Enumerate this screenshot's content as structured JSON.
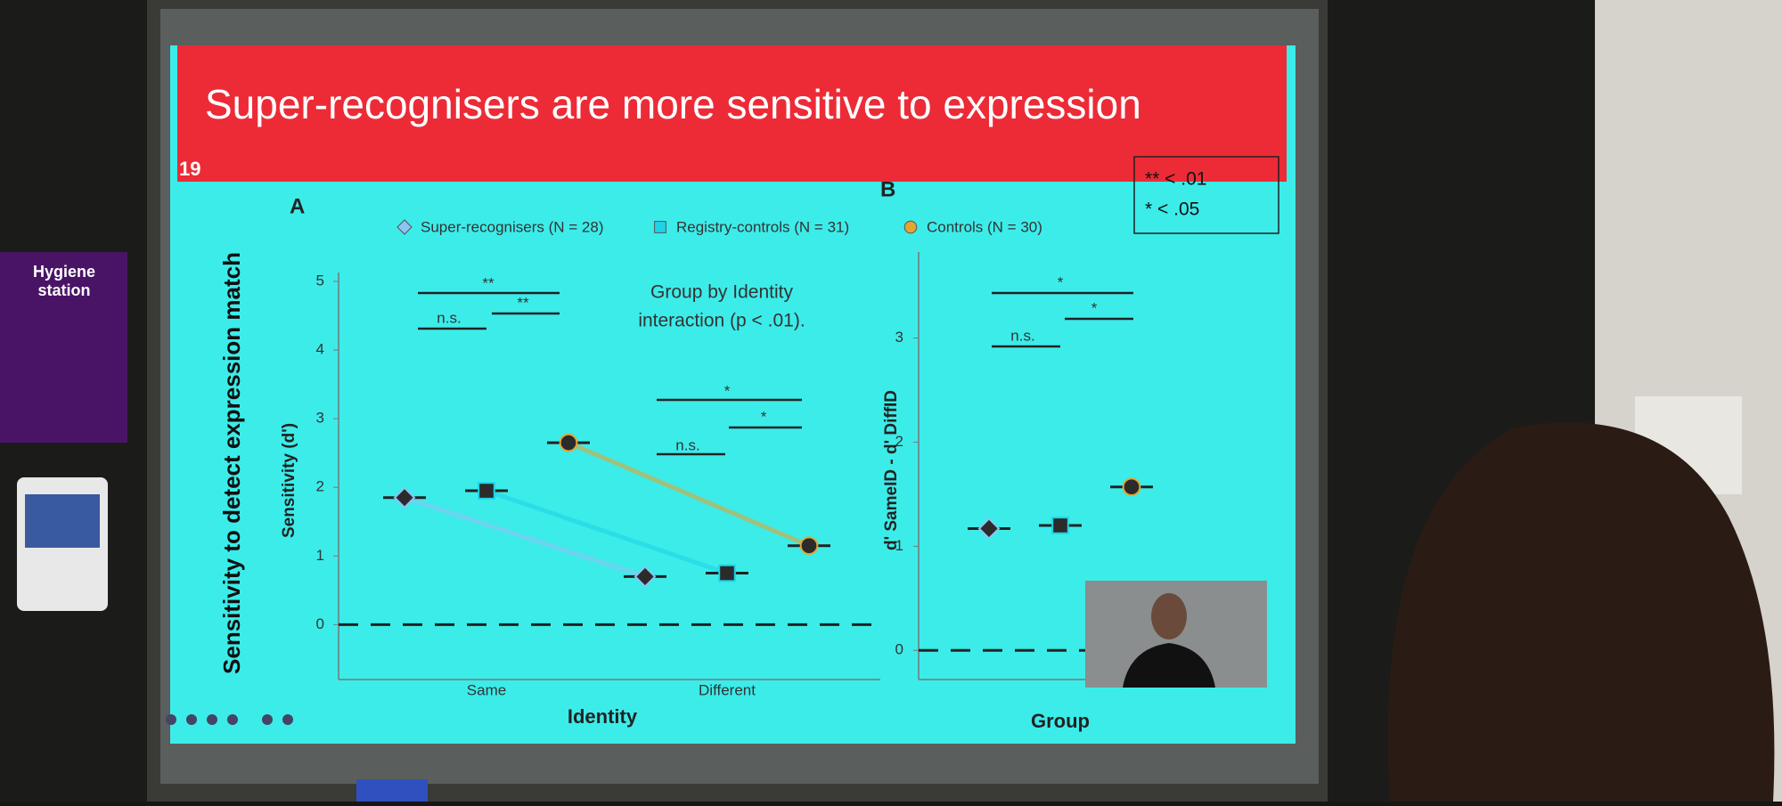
{
  "slide": {
    "number": "19",
    "title": "Super-recognisers are more sensitive to expression",
    "side_label": "Sensitivity to detect expression match",
    "significance_key": [
      "** < .01",
      "* < .05"
    ]
  },
  "poster": {
    "text": [
      "Hygiene",
      "station"
    ]
  },
  "chart_data": [
    {
      "type": "dot",
      "panel": "A",
      "x_label": "Identity",
      "y_label": "Sensitivity (d')",
      "categories": [
        "Same",
        "Different"
      ],
      "series": [
        {
          "name": "Super-recognisers (N = 28)",
          "color": "#8cc4f2",
          "marker": "diamond",
          "values": [
            1.85,
            0.7
          ]
        },
        {
          "name": "Registry-controls (N = 31)",
          "color": "#1fd3e6",
          "marker": "square",
          "values": [
            1.95,
            0.75
          ]
        },
        {
          "name": "Controls (N = 30)",
          "color": "#e3a534",
          "marker": "circle",
          "values": [
            2.65,
            1.15
          ]
        }
      ],
      "ylim": [
        -0.8,
        5
      ],
      "yticks": [
        0,
        1,
        2,
        3,
        4,
        5
      ],
      "annotations": [
        "**",
        "n.s.",
        "**",
        "Group by Identity",
        "interaction (p < .01).",
        "*",
        "n.s.",
        "*"
      ]
    },
    {
      "type": "dot",
      "panel": "B",
      "x_label": "Group",
      "y_label": "d' SameID - d' DiffID",
      "categories": [
        null
      ],
      "series": [
        {
          "color": "#8cc4f2",
          "marker": "diamond",
          "values": [
            1.17
          ]
        },
        {
          "color": "#1fd3e6",
          "marker": "square",
          "values": [
            1.2
          ]
        },
        {
          "color": "#e3a534",
          "marker": "circle",
          "values": [
            1.57
          ]
        }
      ],
      "ylim": [
        -0.28,
        3.74
      ],
      "yticks": [
        0,
        1,
        2,
        3
      ],
      "annotations": [
        "*",
        "n.s.",
        "*"
      ]
    }
  ]
}
